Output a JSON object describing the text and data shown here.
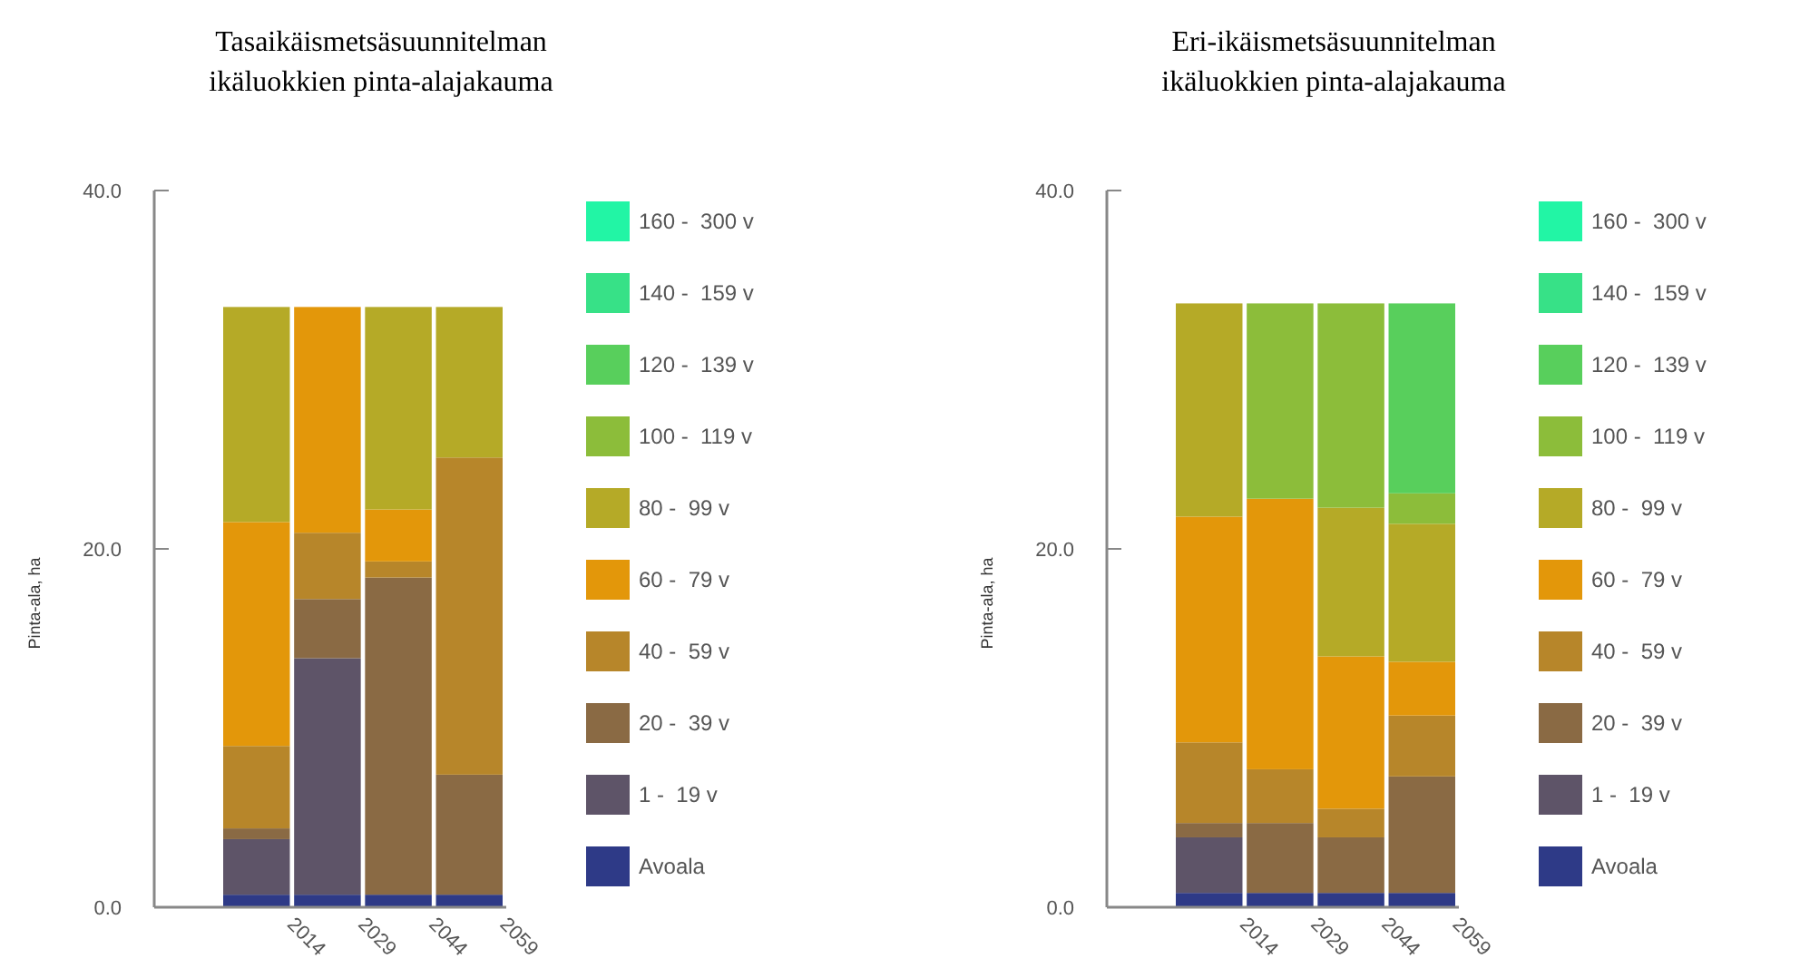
{
  "chart_data": [
    {
      "type": "bar",
      "title": "Tasaikäismetsäsuunnitelman\nikäluokkien pinta-alajakauma",
      "ylabel": "Pinta-ala, ha",
      "categories": [
        "2014",
        "2029",
        "2044",
        "2059"
      ],
      "stacked": true,
      "ylim": [
        0,
        40
      ],
      "yticks": [
        {
          "value": 0,
          "label": "0.0"
        },
        {
          "value": 20,
          "label": "20.0"
        },
        {
          "value": 40,
          "label": "40.0"
        }
      ],
      "legend": "right",
      "grid": false,
      "series": [
        {
          "name": "Avoala",
          "color": "#2e3a87",
          "values": [
            0.7,
            0.7,
            0.7,
            0.7
          ]
        },
        {
          "name": "1 -  19 v",
          "color": "#5e5468",
          "values": [
            3.1,
            13.2,
            0,
            0
          ]
        },
        {
          "name": "20 -  39 v",
          "color": "#8a6a44",
          "values": [
            0.6,
            3.3,
            17.7,
            6.7
          ]
        },
        {
          "name": "40 -  59 v",
          "color": "#b7862a",
          "values": [
            4.6,
            3.7,
            0.9,
            17.7
          ]
        },
        {
          "name": "60 -  79 v",
          "color": "#e3970a",
          "values": [
            12.5,
            12.6,
            2.9,
            0
          ]
        },
        {
          "name": "80 -  99 v",
          "color": "#b5aa27",
          "values": [
            12.0,
            0,
            11.3,
            8.4
          ]
        },
        {
          "name": "100 -  119 v",
          "color": "#8cbd3a",
          "values": [
            0,
            0,
            0,
            0
          ]
        },
        {
          "name": "120 -  139 v",
          "color": "#58cf5c",
          "values": [
            0,
            0,
            0,
            0
          ]
        },
        {
          "name": "140 -  159 v",
          "color": "#37e187",
          "values": [
            0,
            0,
            0,
            0
          ]
        },
        {
          "name": "160 -  300 v",
          "color": "#22f5a5",
          "values": [
            0,
            0,
            0,
            0
          ]
        }
      ]
    },
    {
      "type": "bar",
      "title": "Eri-ikäismetsäsuunnitelman\nikäluokkien pinta-alajakauma",
      "ylabel": "Pinta-ala, ha",
      "categories": [
        "2014",
        "2029",
        "2044",
        "2059"
      ],
      "stacked": true,
      "ylim": [
        0,
        40
      ],
      "yticks": [
        {
          "value": 0,
          "label": "0.0"
        },
        {
          "value": 20,
          "label": "20.0"
        },
        {
          "value": 40,
          "label": "40.0"
        }
      ],
      "legend": "right",
      "grid": false,
      "series": [
        {
          "name": "Avoala",
          "color": "#2e3a87",
          "values": [
            0.8,
            0.8,
            0.8,
            0.8
          ]
        },
        {
          "name": "1 -  19 v",
          "color": "#5e5468",
          "values": [
            3.1,
            0,
            0,
            0
          ]
        },
        {
          "name": "20 -  39 v",
          "color": "#8a6a44",
          "values": [
            0.8,
            3.9,
            3.1,
            6.5
          ]
        },
        {
          "name": "40 -  59 v",
          "color": "#b7862a",
          "values": [
            4.5,
            3.0,
            1.6,
            3.4
          ]
        },
        {
          "name": "60 -  79 v",
          "color": "#e3970a",
          "values": [
            12.6,
            15.1,
            8.5,
            3.0
          ]
        },
        {
          "name": "80 -  99 v",
          "color": "#b5aa27",
          "values": [
            11.9,
            0,
            8.3,
            7.7
          ]
        },
        {
          "name": "100 -  119 v",
          "color": "#8cbd3a",
          "values": [
            0,
            10.9,
            11.4,
            1.7
          ]
        },
        {
          "name": "120 -  139 v",
          "color": "#58cf5c",
          "values": [
            0,
            0,
            0,
            10.6
          ]
        },
        {
          "name": "140 -  159 v",
          "color": "#37e187",
          "values": [
            0,
            0,
            0,
            0
          ]
        },
        {
          "name": "160 -  300 v",
          "color": "#22f5a5",
          "values": [
            0,
            0,
            0,
            0
          ]
        }
      ]
    }
  ]
}
